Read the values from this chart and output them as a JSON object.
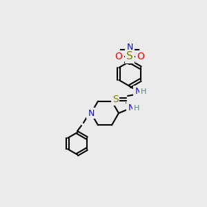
{
  "bg_color": "#ebebeb",
  "bond_color": "#000000",
  "bond_width": 1.5,
  "atom_colors": {
    "N": "#0000ff",
    "S_thio": "#808000",
    "S_sulfonyl": "#808000",
    "O": "#ff0000",
    "H": "#4a8a8a",
    "C": "#000000"
  },
  "font_size": 9,
  "fig_size": [
    3.0,
    3.0
  ],
  "dpi": 100
}
